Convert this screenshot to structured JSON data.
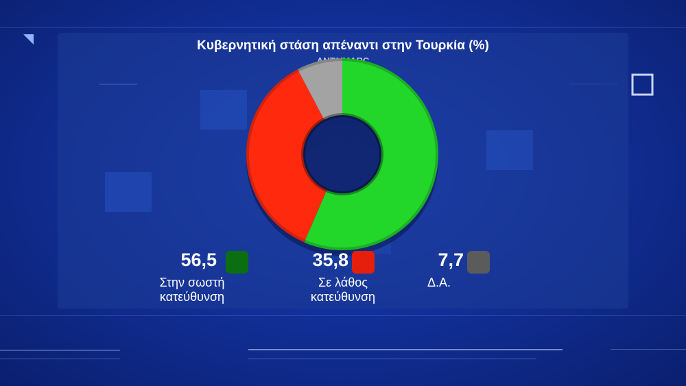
{
  "chart_data": {
    "type": "pie",
    "title": "Κυβερνητική στάση απέναντι στην Τουρκία (%)",
    "subtitle": "ANT1/MARC",
    "categories": [
      "Στην σωστή κατεύθυνση",
      "Σε λάθος κατεύθυνση",
      "Δ.Α."
    ],
    "category_lines": [
      [
        "Στην σωστή",
        "κατεύθυνση"
      ],
      [
        "Σε λάθος",
        "κατεύθυνση"
      ],
      [
        "Δ.Α."
      ]
    ],
    "values": [
      56.5,
      35.8,
      7.7
    ],
    "value_labels": [
      "56,5",
      "35,8",
      "7,7"
    ],
    "colors": [
      "#22d62a",
      "#ff2a0e",
      "#a3a3a3"
    ],
    "swatch_colors": [
      "#0b6e12",
      "#e61f0c",
      "#5b5b5b"
    ],
    "legend_position": "bottom"
  }
}
